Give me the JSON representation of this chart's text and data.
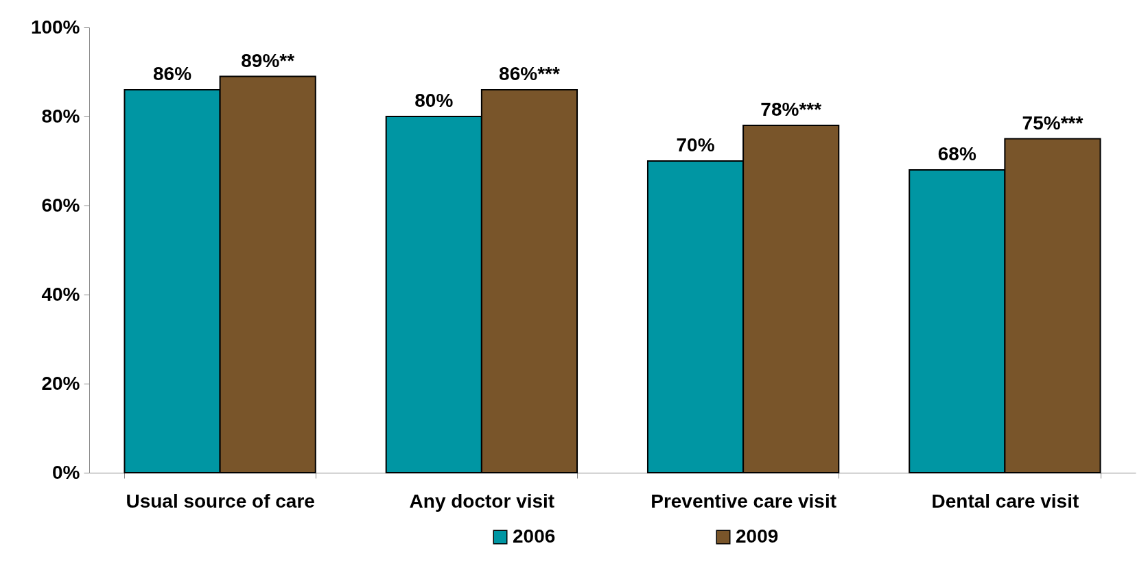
{
  "chart_data": {
    "type": "bar",
    "categories": [
      "Usual source of care",
      "Any doctor visit",
      "Preventive care visit",
      "Dental care visit"
    ],
    "series": [
      {
        "name": "2006",
        "color": "#0096a3",
        "values": [
          86,
          80,
          70,
          68
        ],
        "value_labels": [
          "86%",
          "80%",
          "70%",
          "68%"
        ]
      },
      {
        "name": "2009",
        "color": "#79552a",
        "values": [
          89,
          86,
          78,
          75
        ],
        "value_labels": [
          "89%**",
          "86%***",
          "78%***",
          "75%***"
        ]
      }
    ],
    "ylim": [
      0,
      100
    ],
    "yticks": [
      {
        "value": 0,
        "label": "0%"
      },
      {
        "value": 20,
        "label": "20%"
      },
      {
        "value": 40,
        "label": "40%"
      },
      {
        "value": 60,
        "label": "60%"
      },
      {
        "value": 80,
        "label": "80%"
      },
      {
        "value": 100,
        "label": "100%"
      }
    ],
    "grid": false,
    "legend": "bottom"
  }
}
